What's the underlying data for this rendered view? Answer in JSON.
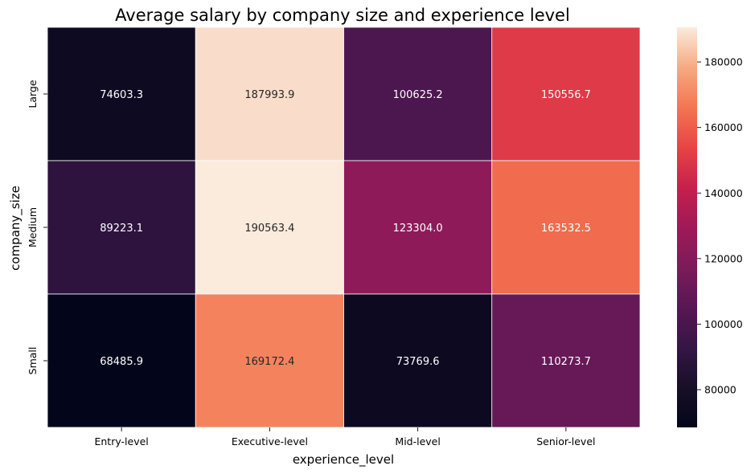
{
  "chart_data": {
    "type": "heatmap",
    "title": "Average salary by company size and experience level",
    "xlabel": "experience_level",
    "ylabel": "company_size",
    "x_categories": [
      "Entry-level",
      "Executive-level",
      "Mid-level",
      "Senior-level"
    ],
    "y_categories": [
      "Large",
      "Medium",
      "Small"
    ],
    "values": [
      [
        74603.3,
        187993.9,
        100625.2,
        150556.7
      ],
      [
        89223.1,
        190563.4,
        123304.0,
        163532.5
      ],
      [
        68485.9,
        169172.4,
        73769.6,
        110273.7
      ]
    ],
    "value_labels": [
      [
        "74603.3",
        "187993.9",
        "100625.2",
        "150556.7"
      ],
      [
        "89223.1",
        "190563.4",
        "123304.0",
        "163532.5"
      ],
      [
        "68485.9",
        "169172.4",
        "73769.6",
        "110273.7"
      ]
    ],
    "colorbar": {
      "range": [
        68485.9,
        190563.4
      ],
      "ticks": [
        80000,
        100000,
        120000,
        140000,
        160000,
        180000
      ],
      "tick_labels": [
        "80000",
        "100000",
        "120000",
        "140000",
        "160000",
        "180000"
      ],
      "colormap": "rocket"
    },
    "grid": false,
    "cell_borders": true
  }
}
